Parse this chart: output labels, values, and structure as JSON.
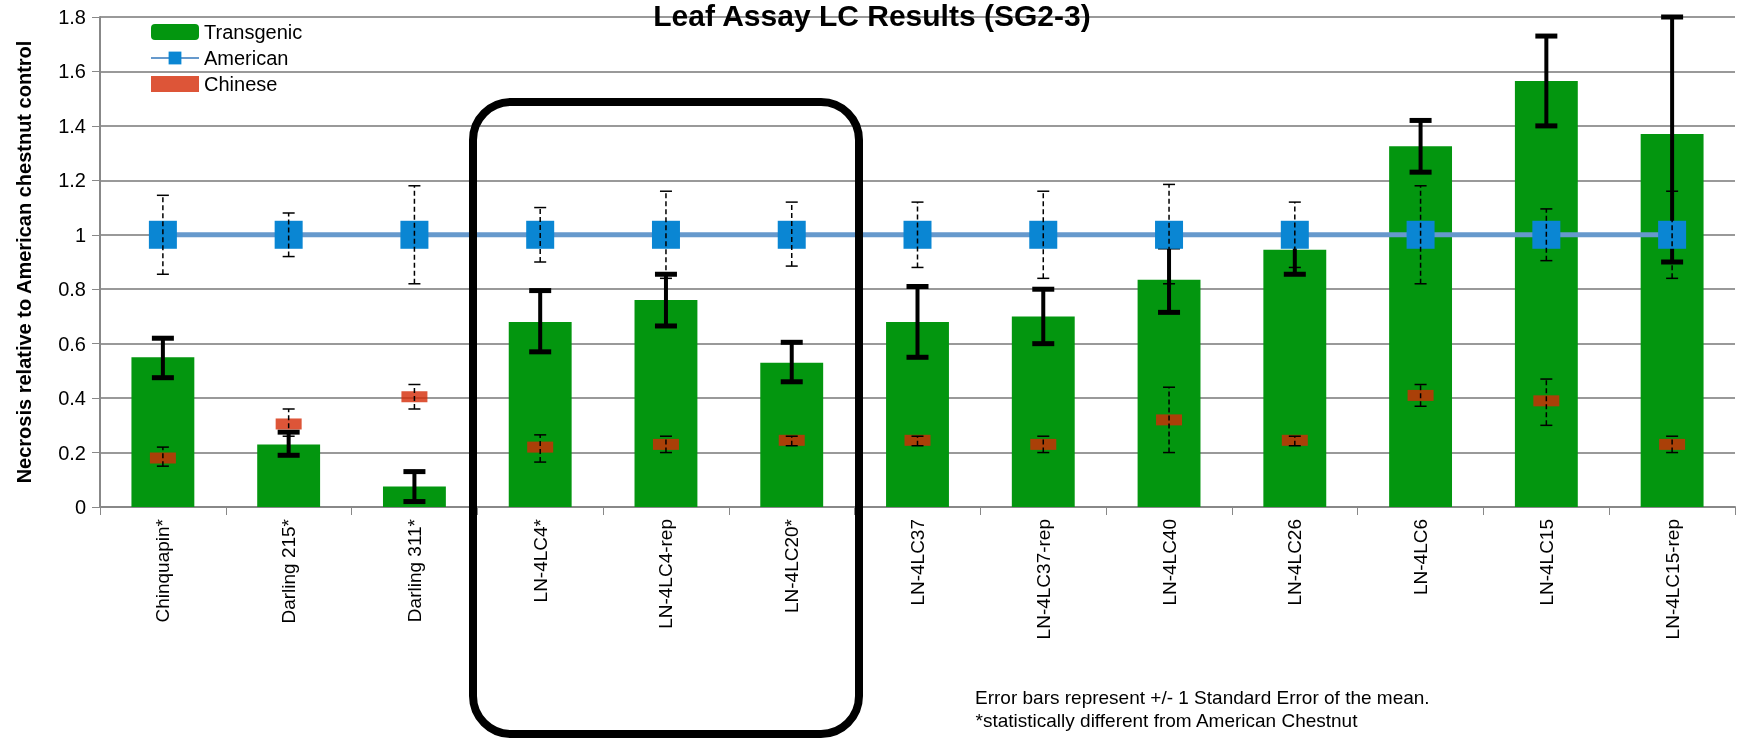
{
  "chart_data": {
    "type": "bar",
    "title": "Leaf Assay LC Results (SG2-3)",
    "ylabel": "Necrosis relative to American chestnut control",
    "categories": [
      "Chinquapin*",
      "Darling 215*",
      "Darling 311*",
      "LN-4LC4*",
      "LN-4LC4-rep",
      "LN-4LC20*",
      "LN-4LC37",
      "LN-4LC37-rep",
      "LN-4LC40",
      "LN-4LC26",
      "LN-4LC6",
      "LN-4LC15",
      "LN-4LC15-rep"
    ],
    "series": [
      {
        "name": "Transgenic",
        "color": "#03960f",
        "values": [
          0.55,
          0.23,
          0.075,
          0.68,
          0.76,
          0.53,
          0.68,
          0.7,
          0.835,
          0.945,
          1.325,
          1.565,
          1.37
        ],
        "errors": [
          [
            0.475,
            0.62
          ],
          [
            0.19,
            0.275
          ],
          [
            0.02,
            0.13
          ],
          [
            0.57,
            0.795
          ],
          [
            0.665,
            0.855
          ],
          [
            0.46,
            0.605
          ],
          [
            0.55,
            0.81
          ],
          [
            0.6,
            0.8
          ],
          [
            0.715,
            0.955
          ],
          [
            0.855,
            1.04
          ],
          [
            1.23,
            1.42
          ],
          [
            1.4,
            1.73
          ],
          [
            0.9,
            1.8
          ]
        ]
      },
      {
        "name": "American",
        "type": "line",
        "color": "#0a86d3",
        "marker": "square",
        "values": [
          1,
          1,
          1,
          1,
          1,
          1,
          1,
          1,
          1,
          1,
          1,
          1,
          1
        ],
        "errors": [
          [
            0.855,
            1.145
          ],
          [
            0.92,
            1.08
          ],
          [
            0.82,
            1.18
          ],
          [
            0.9,
            1.1
          ],
          [
            0.84,
            1.16
          ],
          [
            0.885,
            1.12
          ],
          [
            0.88,
            1.12
          ],
          [
            0.84,
            1.16
          ],
          [
            0.82,
            1.185
          ],
          [
            0.88,
            1.12
          ],
          [
            0.82,
            1.18
          ],
          [
            0.905,
            1.095
          ],
          [
            0.84,
            1.16
          ]
        ]
      },
      {
        "name": "Chinese",
        "type": "scatter",
        "color": "#d42a06",
        "values": [
          0.18,
          0.305,
          0.405,
          0.22,
          0.23,
          0.245,
          0.245,
          0.23,
          0.32,
          0.245,
          0.41,
          0.39,
          0.23
        ],
        "errors": [
          [
            0.15,
            0.22
          ],
          [
            0.26,
            0.36
          ],
          [
            0.36,
            0.45
          ],
          [
            0.165,
            0.265
          ],
          [
            0.2,
            0.26
          ],
          [
            0.225,
            0.26
          ],
          [
            0.225,
            0.26
          ],
          [
            0.2,
            0.26
          ],
          [
            0.2,
            0.44
          ],
          [
            0.225,
            0.26
          ],
          [
            0.37,
            0.45
          ],
          [
            0.3,
            0.47
          ],
          [
            0.2,
            0.26
          ]
        ]
      }
    ],
    "ylim": [
      0,
      1.8
    ],
    "yticks": [
      0,
      0.2,
      0.4,
      0.6,
      0.8,
      1,
      1.2,
      1.4,
      1.6,
      1.8
    ],
    "grid": "y",
    "legend": "top left",
    "annotations": [
      "Error bars represent +/- 1 Standard Error of the mean.",
      "*statistically different from American Chestnut"
    ]
  }
}
